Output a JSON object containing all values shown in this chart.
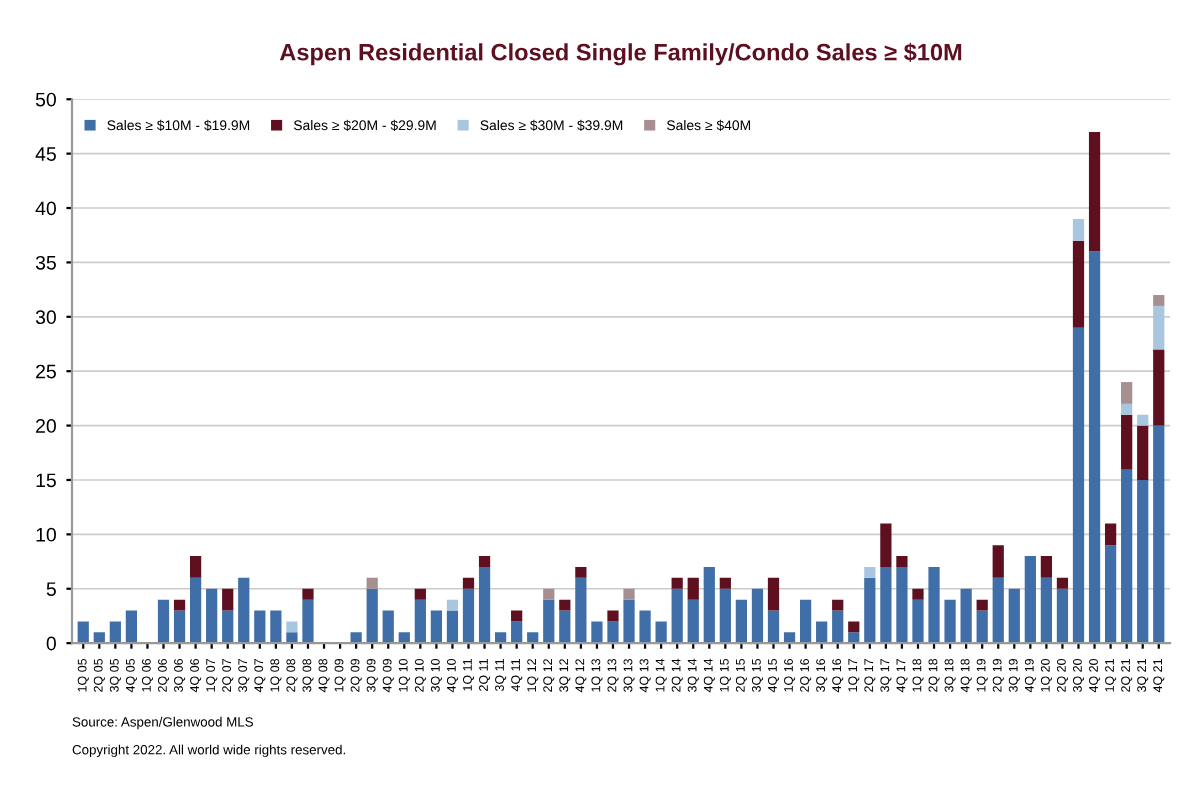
{
  "chart_data": {
    "type": "bar",
    "stacked": true,
    "title": "Aspen Residential Closed Single Family/Condo Sales ≥ $10M",
    "categories": [
      "1Q 05",
      "2Q 05",
      "3Q 05",
      "4Q 05",
      "1Q 06",
      "2Q 06",
      "3Q 06",
      "4Q 06",
      "1Q 07",
      "2Q 07",
      "3Q 07",
      "4Q 07",
      "1Q 08",
      "2Q 08",
      "3Q 08",
      "4Q 08",
      "1Q 09",
      "2Q 09",
      "3Q 09",
      "4Q 09",
      "1Q 10",
      "2Q 10",
      "3Q 10",
      "4Q 10",
      "1Q 11",
      "2Q 11",
      "3Q 11",
      "4Q 11",
      "1Q 12",
      "2Q 12",
      "3Q 12",
      "4Q 12",
      "1Q 13",
      "2Q 13",
      "3Q 13",
      "4Q 13",
      "1Q 14",
      "2Q 14",
      "3Q 14",
      "4Q 14",
      "1Q 15",
      "2Q 15",
      "3Q 15",
      "4Q 15",
      "1Q 16",
      "2Q 16",
      "3Q 16",
      "4Q 16",
      "1Q 17",
      "2Q 17",
      "3Q 17",
      "4Q 17",
      "1Q 18",
      "2Q 18",
      "3Q 18",
      "4Q 18",
      "1Q 19",
      "2Q 19",
      "3Q 19",
      "4Q 19",
      "1Q 20",
      "2Q 20",
      "3Q 20",
      "4Q 20",
      "1Q 21",
      "2Q 21",
      "3Q 21",
      "4Q 21"
    ],
    "series": [
      {
        "name": "Sales ≥ $10M - $19.9M",
        "color": "#3f6ea8",
        "values": [
          2,
          1,
          2,
          3,
          0,
          4,
          3,
          6,
          5,
          3,
          6,
          3,
          3,
          1,
          4,
          0,
          0,
          1,
          5,
          3,
          1,
          4,
          3,
          3,
          5,
          7,
          1,
          2,
          1,
          4,
          3,
          6,
          2,
          2,
          4,
          3,
          2,
          5,
          4,
          7,
          5,
          4,
          5,
          3,
          1,
          4,
          2,
          3,
          1,
          6,
          7,
          7,
          4,
          7,
          4,
          5,
          3,
          6,
          5,
          8,
          6,
          5,
          29,
          36,
          9,
          16,
          15,
          20
        ]
      },
      {
        "name": "Sales ≥ $20M - $29.9M",
        "color": "#5e1020",
        "values": [
          0,
          0,
          0,
          0,
          0,
          0,
          1,
          2,
          0,
          2,
          0,
          0,
          0,
          0,
          1,
          0,
          0,
          0,
          0,
          0,
          0,
          1,
          0,
          0,
          1,
          1,
          0,
          1,
          0,
          0,
          1,
          1,
          0,
          1,
          0,
          0,
          0,
          1,
          2,
          0,
          1,
          0,
          0,
          3,
          0,
          0,
          0,
          1,
          1,
          0,
          4,
          1,
          1,
          0,
          0,
          0,
          1,
          3,
          0,
          0,
          2,
          1,
          8,
          11,
          2,
          5,
          5,
          7
        ]
      },
      {
        "name": "Sales ≥ $30M - $39.9M",
        "color": "#a9c6e0",
        "values": [
          0,
          0,
          0,
          0,
          0,
          0,
          0,
          0,
          0,
          0,
          0,
          0,
          0,
          1,
          0,
          0,
          0,
          0,
          0,
          0,
          0,
          0,
          0,
          1,
          0,
          0,
          0,
          0,
          0,
          0,
          0,
          0,
          0,
          0,
          0,
          0,
          0,
          0,
          0,
          0,
          0,
          0,
          0,
          0,
          0,
          0,
          0,
          0,
          0,
          1,
          0,
          0,
          0,
          0,
          0,
          0,
          0,
          0,
          0,
          0,
          0,
          0,
          2,
          0,
          0,
          1,
          1,
          4
        ]
      },
      {
        "name": "Sales ≥ $40M",
        "color": "#a68e91",
        "values": [
          0,
          0,
          0,
          0,
          0,
          0,
          0,
          0,
          0,
          0,
          0,
          0,
          0,
          0,
          0,
          0,
          0,
          0,
          1,
          0,
          0,
          0,
          0,
          0,
          0,
          0,
          0,
          0,
          0,
          1,
          0,
          0,
          0,
          0,
          1,
          0,
          0,
          0,
          0,
          0,
          0,
          0,
          0,
          0,
          0,
          0,
          0,
          0,
          0,
          0,
          0,
          0,
          0,
          0,
          0,
          0,
          0,
          0,
          0,
          0,
          0,
          0,
          0,
          0,
          0,
          2,
          0,
          1
        ]
      }
    ],
    "ylim": [
      0,
      50
    ],
    "yticks": [
      0,
      5,
      10,
      15,
      20,
      25,
      30,
      35,
      40,
      45,
      50
    ],
    "grid": "y",
    "legend": "top left",
    "annotations": [
      "Source: Aspen/Glenwood MLS",
      "Copyright 2022. All world wide rights reserved."
    ]
  }
}
